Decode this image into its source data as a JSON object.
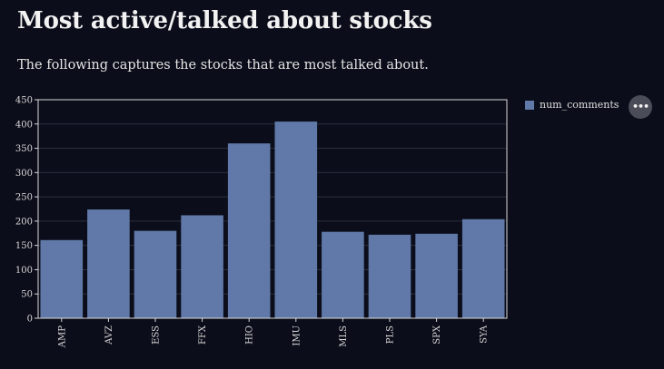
{
  "page": {
    "title": "Most active/talked about stocks",
    "description": "The following captures the stocks that are most talked about."
  },
  "legend": {
    "label": "num_comments"
  },
  "menu": {
    "icon": "ellipsis-icon",
    "glyph": "•••"
  },
  "colors": {
    "background": "#0b0e1a",
    "bar": "#6079a8",
    "grid": "#2a2e3c",
    "axis": "#d8d8d8"
  },
  "chart_data": {
    "type": "bar",
    "categories": [
      "AMP",
      "AVZ",
      "ESS",
      "FFX",
      "HIO",
      "IMU",
      "MLS",
      "PLS",
      "SPX",
      "SYA"
    ],
    "series": [
      {
        "name": "num_comments",
        "values": [
          161,
          224,
          180,
          212,
          360,
          405,
          178,
          172,
          174,
          204
        ]
      }
    ],
    "xlabel": "",
    "ylabel": "",
    "ylim": [
      0,
      450
    ],
    "yticks": [
      0,
      50,
      100,
      150,
      200,
      250,
      300,
      350,
      400,
      450
    ],
    "grid": true,
    "legend_position": "top-right"
  }
}
